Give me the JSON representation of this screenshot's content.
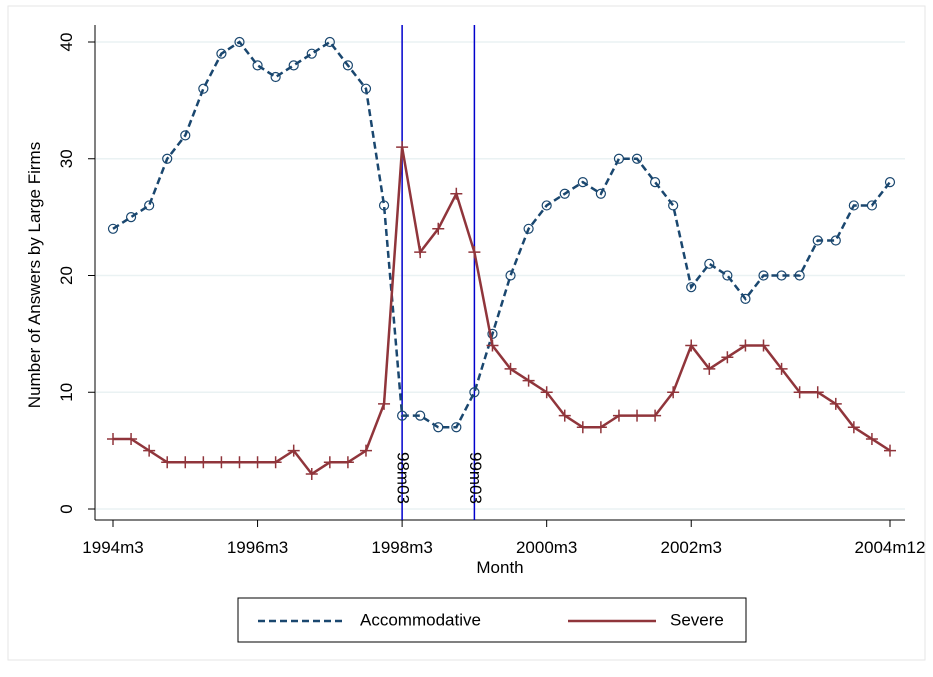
{
  "chart_data": {
    "type": "line",
    "x_label": "Month",
    "y_label": "Number of Answers by Large Firms",
    "categories": [
      "1994m3",
      null,
      null,
      null,
      null,
      null,
      null,
      null,
      "1996m3",
      null,
      null,
      null,
      null,
      null,
      null,
      null,
      "1998m3",
      null,
      null,
      null,
      null,
      null,
      null,
      null,
      "2000m3",
      null,
      null,
      null,
      null,
      null,
      null,
      null,
      "2002m3",
      null,
      null,
      null,
      null,
      null,
      null,
      null,
      null,
      null,
      null,
      "2004m12"
    ],
    "series": [
      {
        "name": "Accommodative",
        "color": "#1a476f",
        "dash": true,
        "marker": "circle",
        "values": [
          24,
          25,
          26,
          30,
          32,
          36,
          39,
          40,
          38,
          37,
          38,
          39,
          40,
          38,
          36,
          26,
          8,
          8,
          7,
          7,
          10,
          15,
          20,
          24,
          26,
          27,
          28,
          27,
          30,
          30,
          28,
          26,
          19,
          21,
          20,
          18,
          20,
          20,
          20,
          23,
          23,
          26,
          26,
          28
        ]
      },
      {
        "name": "Severe",
        "color": "#90353b",
        "dash": false,
        "marker": "plus",
        "values": [
          6,
          6,
          5,
          4,
          4,
          4,
          4,
          4,
          4,
          4,
          5,
          3,
          4,
          4,
          5,
          9,
          31,
          22,
          24,
          27,
          22,
          14,
          12,
          11,
          10,
          8,
          7,
          7,
          8,
          8,
          8,
          10,
          14,
          12,
          13,
          14,
          14,
          12,
          10,
          10,
          9,
          7,
          6,
          5
        ]
      }
    ],
    "vlines": [
      {
        "label": "98m03",
        "category": 16,
        "color": "#0000cc"
      },
      {
        "label": "99m03",
        "category": 20,
        "color": "#0000cc"
      }
    ],
    "ylim": [
      0,
      40
    ],
    "yticks": [
      0,
      10,
      20,
      30,
      40
    ],
    "grid": true,
    "legend": "bottom"
  }
}
